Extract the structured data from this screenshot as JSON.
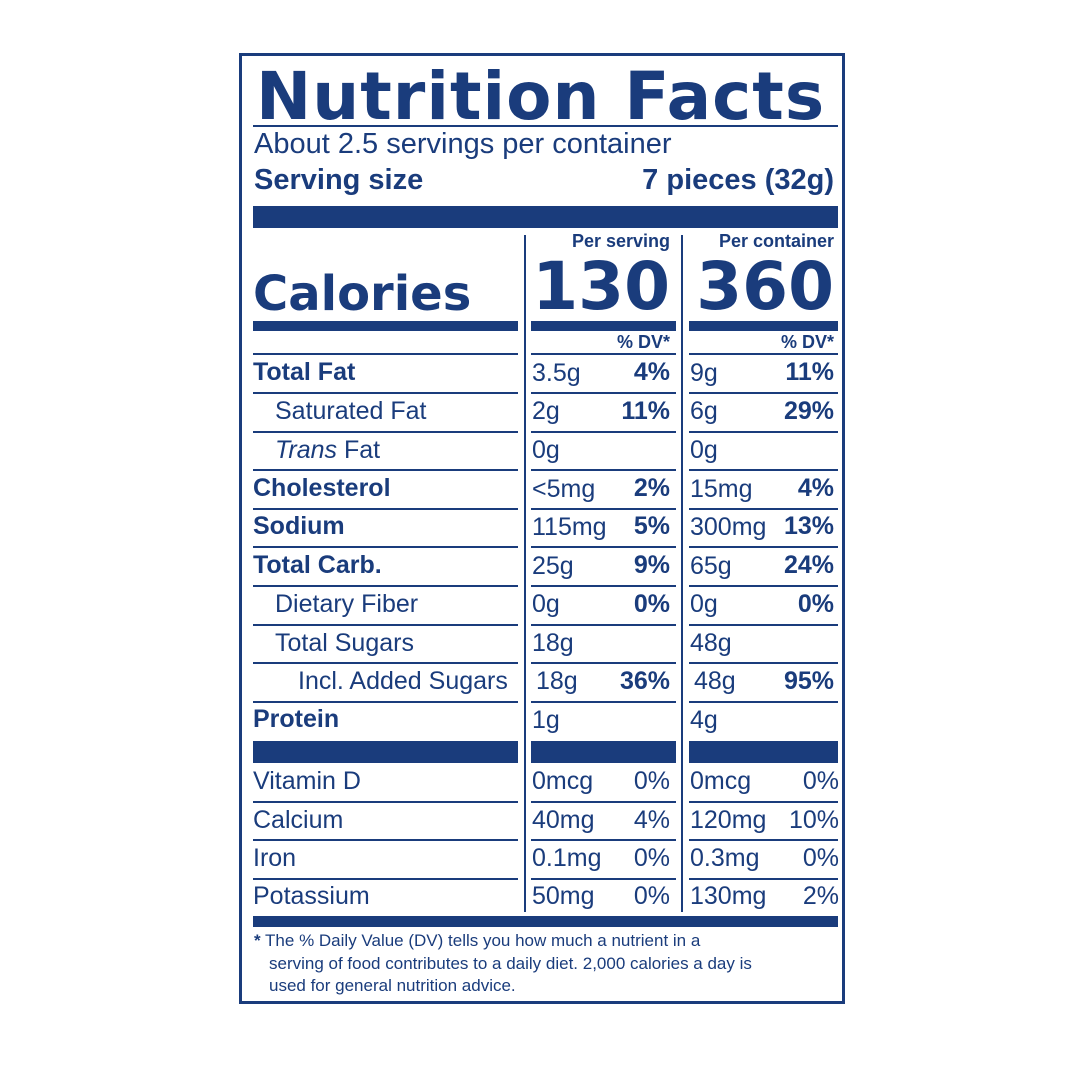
{
  "title": "Nutrition Facts",
  "servings": "About 2.5 servings per container",
  "serving_size_label": "Serving size",
  "serving_size_value": "7 pieces (32g)",
  "calories_label": "Calories",
  "per_serving_label": "Per serving",
  "per_container_label": "Per container",
  "calories_per_serving": "130",
  "calories_per_container": "360",
  "dv_header": "% DV*",
  "nutrients": [
    {
      "name": "Total Fat",
      "serving_amount": "3.5g",
      "serving_dv": "4%",
      "container_amount": "9g",
      "container_dv": "11%"
    },
    {
      "name": "Saturated Fat",
      "serving_amount": "2g",
      "serving_dv": "11%",
      "container_amount": "6g",
      "container_dv": "29%"
    },
    {
      "name_italic": "Trans",
      "name_rest": " Fat",
      "serving_amount": "0g",
      "serving_dv": "",
      "container_amount": "0g",
      "container_dv": ""
    },
    {
      "name": "Cholesterol",
      "serving_amount": "<5mg",
      "serving_dv": "2%",
      "container_amount": "15mg",
      "container_dv": "4%"
    },
    {
      "name": "Sodium",
      "serving_amount": "115mg",
      "serving_dv": "5%",
      "container_amount": "300mg",
      "container_dv": "13%"
    },
    {
      "name": "Total Carb.",
      "serving_amount": "25g",
      "serving_dv": "9%",
      "container_amount": "65g",
      "container_dv": "24%"
    },
    {
      "name": "Dietary Fiber",
      "serving_amount": "0g",
      "serving_dv": "0%",
      "container_amount": "0g",
      "container_dv": "0%"
    },
    {
      "name": "Total Sugars",
      "serving_amount": "18g",
      "serving_dv": "",
      "container_amount": "48g",
      "container_dv": ""
    },
    {
      "name": "Incl. Added Sugars",
      "serving_amount": "18g",
      "serving_dv": "36%",
      "container_amount": "48g",
      "container_dv": "95%"
    },
    {
      "name": "Protein",
      "serving_amount": "1g",
      "serving_dv": "",
      "container_amount": "4g",
      "container_dv": ""
    }
  ],
  "vitamins": [
    {
      "name": "Vitamin D",
      "serving_amount": "0mcg",
      "serving_dv": "0%",
      "container_amount": "0mcg",
      "container_dv": "0%"
    },
    {
      "name": "Calcium",
      "serving_amount": "40mg",
      "serving_dv": "4%",
      "container_amount": "120mg",
      "container_dv": "10%"
    },
    {
      "name": "Iron",
      "serving_amount": "0.1mg",
      "serving_dv": "0%",
      "container_amount": "0.3mg",
      "container_dv": "0%"
    },
    {
      "name": "Potassium",
      "serving_amount": "50mg",
      "serving_dv": "0%",
      "container_amount": "130mg",
      "container_dv": "2%"
    }
  ],
  "footnote": {
    "star": "*",
    "line1": "The % Daily Value (DV) tells you how much a nutrient in a",
    "line2": "serving of food contributes to a daily diet. 2,000 calories a day is",
    "line3": "used for general nutrition advice."
  },
  "colors": {
    "ink": "#1a3c7c",
    "background": "#ffffff"
  }
}
